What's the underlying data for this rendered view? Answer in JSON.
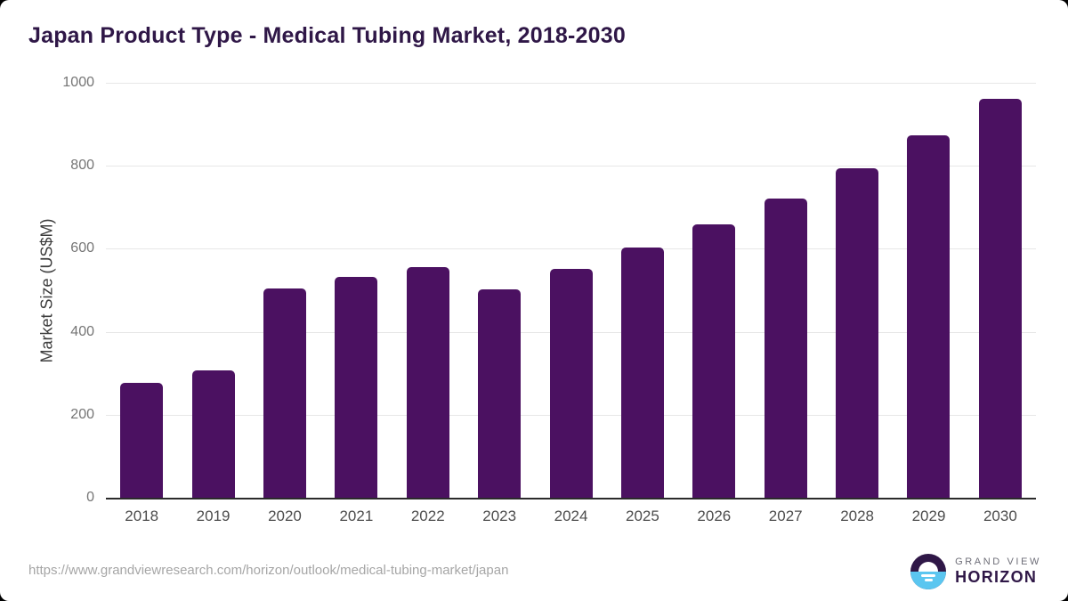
{
  "page": {
    "title": "Japan Product Type - Medical Tubing Market, 2018-2030"
  },
  "chart_data": {
    "type": "bar",
    "title": "Japan Product Type - Medical Tubing Market, 2018-2030",
    "categories": [
      "2018",
      "2019",
      "2020",
      "2021",
      "2022",
      "2023",
      "2024",
      "2025",
      "2026",
      "2027",
      "2028",
      "2029",
      "2030"
    ],
    "values": [
      277,
      306,
      504,
      533,
      556,
      503,
      552,
      603,
      659,
      722,
      795,
      874,
      961
    ],
    "xlabel": "",
    "ylabel": "Market Size (US$M)",
    "ylim": [
      0,
      1000
    ],
    "yticks": [
      0,
      200,
      400,
      600,
      800,
      1000
    ],
    "grid": true,
    "legend": "none",
    "bar_color": "#4B1161"
  },
  "footer": {
    "source_url": "https://www.grandviewresearch.com/horizon/outlook/medical-tubing-market/japan",
    "logo": {
      "brand_top": "GRAND VIEW",
      "brand_bottom": "HORIZON"
    }
  },
  "colors": {
    "bar": "#4B1161",
    "title_text": "#2F1747",
    "axis_line": "#2B2B2B",
    "gridline": "#E7E7E7",
    "ytick_text": "#757575",
    "xtick_text": "#4D4D4D",
    "axis_label_text": "#3C3C3C",
    "url_text": "#A6A6A6",
    "logo_blue": "#5BC6F0",
    "logo_purple": "#2F1747",
    "logo_gray": "#6E6E78"
  }
}
